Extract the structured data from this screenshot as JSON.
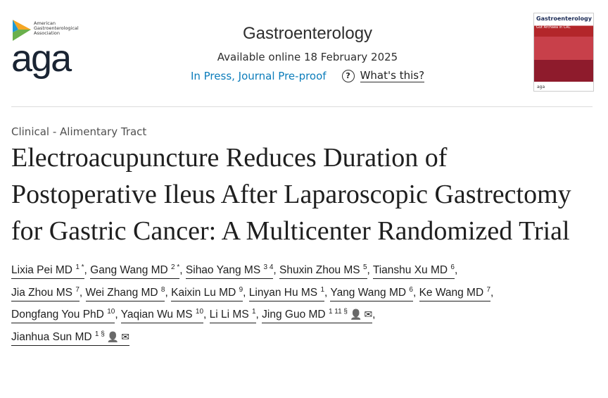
{
  "logo": {
    "org": [
      "American",
      "Gastroenterological",
      "Association"
    ],
    "mark": "aga"
  },
  "header": {
    "journal": "Gastroenterology",
    "available": "Available online 18 February 2025",
    "status_link": "In Press, Journal Pre-proof",
    "whats_this": "What's this?"
  },
  "cover": {
    "title": "Gastroenterology",
    "subtitle": "Gut Archaea in CRC",
    "footer": "aga"
  },
  "article": {
    "section": "Clinical - Alimentary Tract",
    "title": "Electroacupuncture Reduces Duration of Postoperative Ileus After Laparoscopic Gastrectomy for Gastric Cancer: A Multicenter Randomized Trial"
  },
  "authors": [
    {
      "name": "Lixia Pei MD",
      "sup": "1 *"
    },
    {
      "name": "Gang Wang MD",
      "sup": "2 *"
    },
    {
      "name": "Sihao Yang MS",
      "sup": "3 4"
    },
    {
      "name": "Shuxin Zhou MS",
      "sup": "5"
    },
    {
      "name": "Tianshu Xu MD",
      "sup": "6"
    },
    {
      "name": "Jia Zhou MS",
      "sup": "7"
    },
    {
      "name": "Wei Zhang MD",
      "sup": "8"
    },
    {
      "name": "Kaixin Lu MD",
      "sup": "9"
    },
    {
      "name": "Linyan Hu MS",
      "sup": "1"
    },
    {
      "name": "Yang Wang MD",
      "sup": "6"
    },
    {
      "name": "Ke Wang MD",
      "sup": "7"
    },
    {
      "name": "Dongfang You PhD",
      "sup": "10"
    },
    {
      "name": "Yaqian Wu MS",
      "sup": "10"
    },
    {
      "name": "Li Li MS",
      "sup": "1"
    },
    {
      "name": "Jing Guo MD",
      "sup": "1 11 §",
      "icons": true
    },
    {
      "name": "Jianhua Sun MD",
      "sup": "1 §",
      "icons": true
    }
  ],
  "icons": {
    "person": "person-icon",
    "email": "email-icon"
  }
}
